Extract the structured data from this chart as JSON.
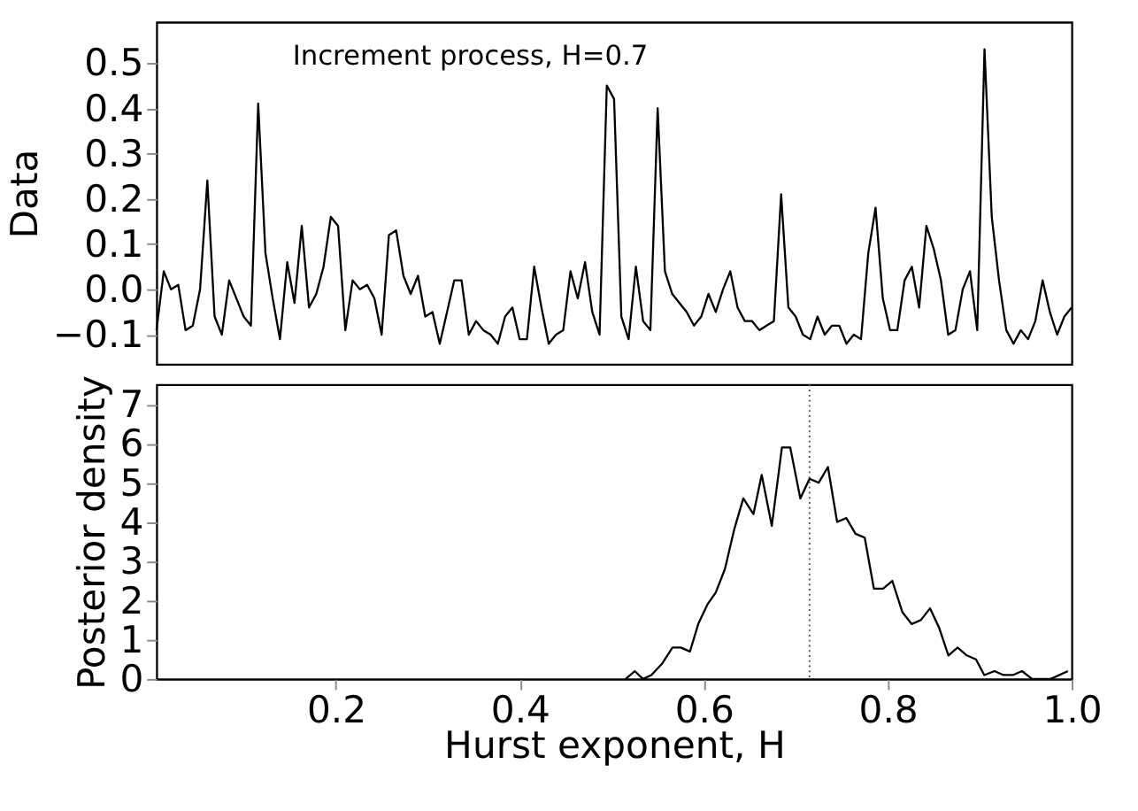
{
  "chart_data": [
    {
      "type": "line",
      "annotations": [
        "Increment process, H=0.7"
      ],
      "ylabel": "Data",
      "tick_labels": "y",
      "grid": false,
      "legend": false,
      "categories": [
        null,
        null,
        null,
        null,
        null,
        null,
        null,
        null,
        null,
        null,
        null,
        null,
        null,
        null,
        null,
        null,
        null,
        null,
        null,
        null,
        null,
        null,
        null,
        null,
        null,
        null,
        null,
        null,
        null,
        null,
        null,
        null,
        null,
        null,
        null,
        null,
        null,
        null,
        null,
        null,
        null,
        null,
        null,
        null,
        null,
        null,
        null,
        null,
        null,
        null,
        null,
        null,
        null,
        null,
        null,
        null,
        null,
        null,
        null,
        null,
        null,
        null,
        null,
        null,
        null,
        null,
        null,
        null,
        null,
        null,
        null,
        null,
        null,
        null,
        null,
        null,
        null,
        null,
        null,
        null,
        null,
        null,
        null,
        null,
        null,
        null,
        null,
        null,
        null,
        null,
        null,
        null,
        null,
        null,
        null,
        null,
        null,
        null,
        null,
        null,
        null,
        null,
        null,
        null,
        null,
        null,
        null,
        null,
        null,
        null,
        null,
        null,
        null,
        null,
        null,
        null,
        null,
        null,
        null,
        null,
        null,
        null,
        null,
        null,
        null,
        null,
        null
      ],
      "series": [
        {
          "color": "#000000",
          "values": [
            -0.09,
            0.04,
            0.0,
            0.01,
            -0.09,
            -0.08,
            0.0,
            0.24,
            -0.06,
            -0.1,
            0.02,
            -0.02,
            -0.06,
            -0.08,
            0.41,
            0.08,
            -0.02,
            -0.11,
            0.06,
            -0.03,
            0.14,
            -0.04,
            -0.01,
            0.05,
            0.16,
            0.14,
            -0.09,
            0.02,
            0.0,
            0.01,
            -0.02,
            -0.1,
            0.12,
            0.13,
            0.03,
            -0.01,
            0.03,
            -0.06,
            -0.05,
            -0.12,
            -0.05,
            0.02,
            0.02,
            -0.1,
            -0.07,
            -0.09,
            -0.1,
            -0.12,
            -0.06,
            -0.04,
            -0.11,
            -0.11,
            0.05,
            -0.04,
            -0.12,
            -0.1,
            -0.09,
            0.04,
            -0.02,
            0.06,
            -0.05,
            -0.1,
            0.45,
            0.42,
            -0.06,
            -0.11,
            0.05,
            -0.07,
            -0.09,
            0.4,
            0.04,
            -0.01,
            -0.03,
            -0.05,
            -0.08,
            -0.06,
            -0.01,
            -0.05,
            0.0,
            0.04,
            -0.04,
            -0.07,
            -0.07,
            -0.09,
            -0.08,
            -0.07,
            0.21,
            -0.04,
            -0.06,
            -0.1,
            -0.11,
            -0.06,
            -0.1,
            -0.08,
            -0.08,
            -0.12,
            -0.1,
            -0.11,
            0.08,
            0.18,
            -0.02,
            -0.09,
            -0.09,
            0.02,
            0.05,
            -0.04,
            0.14,
            0.09,
            0.02,
            -0.1,
            -0.09,
            0.0,
            0.04,
            -0.09,
            0.53,
            0.16,
            0.02,
            -0.09,
            -0.12,
            -0.09,
            -0.11,
            -0.07,
            0.02,
            -0.05,
            -0.1,
            -0.06,
            -0.04
          ]
        }
      ],
      "ylim": [
        -0.165,
        0.59
      ],
      "yticks": [
        {
          "value": -0.1,
          "label": "−0.1"
        },
        {
          "value": 0,
          "label": "0.0"
        },
        0.1,
        0.2,
        0.3,
        0.4,
        0.5
      ]
    },
    {
      "type": "line",
      "xlabel": "Hurst exponent, H",
      "ylabel": "Posterior density",
      "grid": false,
      "legend": false,
      "x": [
        0.515,
        0.525,
        0.534,
        0.543,
        0.555,
        0.566,
        0.575,
        0.585,
        0.594,
        0.604,
        0.613,
        0.623,
        0.633,
        0.643,
        0.654,
        0.663,
        0.674,
        0.685,
        0.694,
        0.705,
        0.715,
        0.725,
        0.735,
        0.745,
        0.755,
        0.765,
        0.775,
        0.785,
        0.795,
        0.805,
        0.816,
        0.826,
        0.836,
        0.846,
        0.856,
        0.866,
        0.876,
        0.886,
        0.896,
        0.905,
        0.916,
        0.926,
        0.936,
        0.946,
        0.957,
        0.977,
        0.996
      ],
      "series": [
        {
          "color": "#000000",
          "values": [
            0,
            0.2,
            0,
            0.1,
            0.4,
            0.8,
            0.8,
            0.7,
            1.4,
            1.9,
            2.2,
            2.8,
            3.8,
            4.6,
            4.2,
            5.2,
            3.9,
            5.9,
            5.9,
            4.6,
            5.1,
            5.0,
            5.4,
            4.0,
            4.1,
            3.7,
            3.6,
            2.3,
            2.3,
            2.5,
            1.7,
            1.4,
            1.5,
            1.8,
            1.3,
            0.6,
            0.8,
            0.6,
            0.5,
            0.1,
            0.2,
            0.1,
            0.1,
            0.2,
            0,
            0,
            0.2
          ]
        }
      ],
      "xlim": [
        0.005,
        1.0
      ],
      "xticks": [
        0.2,
        0.4,
        0.6,
        0.8,
        {
          "value": 1.0,
          "label": "1.0"
        }
      ],
      "ylim": [
        0,
        7.5
      ],
      "yticks": [
        0,
        1,
        2,
        3,
        4,
        5,
        6,
        7
      ],
      "ref_lines": [
        {
          "axis": "x",
          "value": 0.715,
          "label": null,
          "color": "#555555",
          "line_style": "dotted"
        }
      ]
    }
  ]
}
